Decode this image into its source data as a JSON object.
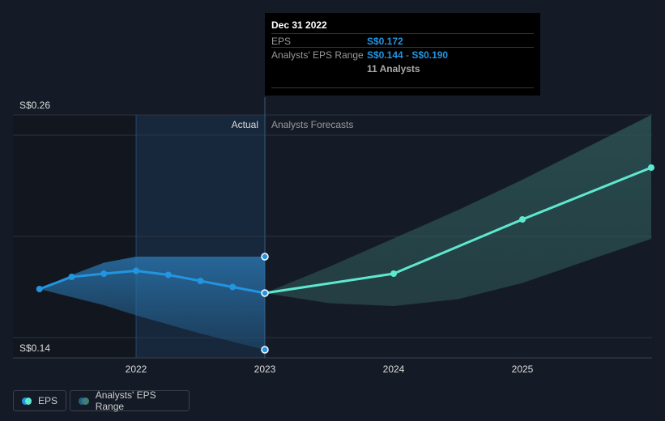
{
  "chart_data": {
    "type": "line",
    "ylim": [
      0.14,
      0.26
    ],
    "yticks": [
      {
        "value": 0.26,
        "label": "S$0.26"
      },
      {
        "value": 0.14,
        "label": "S$0.14"
      }
    ],
    "xticks": [
      {
        "value": 2022,
        "label": "2022"
      },
      {
        "value": 2023,
        "label": "2023"
      },
      {
        "value": 2024,
        "label": "2024"
      },
      {
        "value": 2025,
        "label": "2025"
      }
    ],
    "xlim": [
      2021.0,
      2026.0
    ],
    "divider": {
      "x": 2023,
      "left_label": "Actual",
      "right_label": "Analysts Forecasts"
    },
    "series": [
      {
        "name": "EPS",
        "color": "#2394df",
        "x": [
          2021.25,
          2021.5,
          2021.75,
          2022,
          2022.25,
          2022.5,
          2022.75,
          2023
        ],
        "y": [
          0.174,
          0.18,
          0.1816,
          0.183,
          0.181,
          0.178,
          0.175,
          0.172
        ]
      },
      {
        "name": "EPS",
        "color": "#5ee8d0",
        "x": [
          2023,
          2024,
          2025,
          2026
        ],
        "y": [
          0.172,
          0.1816,
          0.2084,
          0.234
        ]
      }
    ],
    "range": [
      {
        "name": "Analysts' EPS Range",
        "color": "#2a76b0",
        "x": [
          2021.25,
          2021.5,
          2021.75,
          2022,
          2022.5,
          2023
        ],
        "upper": [
          0.174,
          0.181,
          0.187,
          0.19,
          0.19,
          0.19
        ],
        "lower": [
          0.174,
          0.17,
          0.166,
          0.161,
          0.152,
          0.144
        ]
      },
      {
        "name": "Analysts' EPS Range",
        "color": "#2f5a5a",
        "x": [
          2023,
          2023.5,
          2024,
          2024.5,
          2025,
          2025.5,
          2026
        ],
        "upper": [
          0.172,
          0.185,
          0.199,
          0.213,
          0.228,
          0.244,
          0.26
        ],
        "lower": [
          0.172,
          0.167,
          0.1656,
          0.169,
          0.177,
          0.188,
          0.1988
        ]
      }
    ]
  },
  "tooltip": {
    "date": "Dec 31 2022",
    "eps_label": "EPS",
    "eps_value": "S$0.172",
    "range_label": "Analysts' EPS Range",
    "range_low": "S$0.144",
    "range_sep": " - ",
    "range_high": "S$0.190",
    "analysts": "11 Analysts"
  },
  "legend": {
    "eps": "EPS",
    "range": "Analysts' EPS Range"
  }
}
